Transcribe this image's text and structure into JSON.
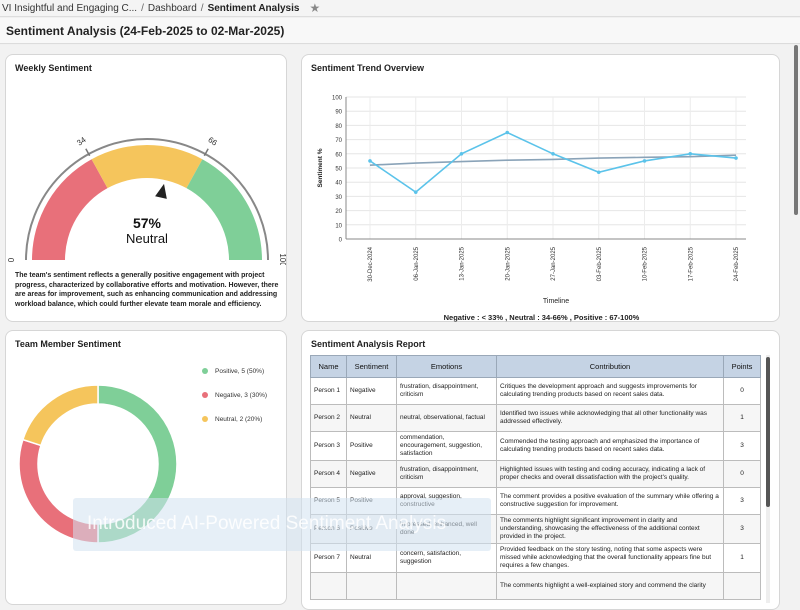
{
  "breadcrumb": {
    "project": "VI Insightful and Engaging C...",
    "dashboard": "Dashboard",
    "current": "Sentiment Analysis",
    "separator": "/"
  },
  "page": {
    "title": "Sentiment Analysis (24-Feb-2025 to 02-Mar-2025)"
  },
  "weekly": {
    "title": "Weekly Sentiment",
    "ticks": {
      "min": "0",
      "low": "34",
      "high": "66",
      "max": "100"
    },
    "percent": "57%",
    "label": "Neutral",
    "value": 57,
    "description": "The team's sentiment reflects a generally positive engagement with project progress, characterized by collaborative efforts and motivation. However, there are areas for improvement, such as enhancing communication and addressing workload balance, which could further elevate team morale and efficiency.",
    "colors": {
      "negative": "#e8707a",
      "neutral": "#f5c55c",
      "positive": "#7fcf98"
    }
  },
  "trend": {
    "title": "Sentiment Trend Overview",
    "legend": "Negative : < 33% , Neutral : 34-66% , Positive : 67-100%",
    "chart_data": {
      "type": "line",
      "xlabel": "Timeline",
      "ylabel": "Sentiment %",
      "ylim": [
        0,
        100
      ],
      "yticks": [
        "0",
        "10",
        "20",
        "30",
        "40",
        "50",
        "60",
        "70",
        "80",
        "90",
        "100"
      ],
      "categories": [
        "30-Dec-2024",
        "06-Jan-2025",
        "13-Jan-2025",
        "20-Jan-2025",
        "27-Jan-2025",
        "03-Feb-2025",
        "10-Feb-2025",
        "17-Feb-2025",
        "24-Feb-2025"
      ],
      "series": [
        {
          "values": [
            55,
            33,
            60,
            75,
            60,
            47,
            55,
            60,
            57
          ],
          "color": "#5bc3ea"
        },
        {
          "values": [
            52,
            53.5,
            54.5,
            55.5,
            56,
            57,
            57.5,
            58,
            59
          ],
          "color": "#8aa3b8"
        }
      ],
      "grid": true
    }
  },
  "team": {
    "title": "Team Member Sentiment",
    "chart_data": {
      "type": "pie",
      "labels": [
        "Positive, 5 (50%)",
        "Negative, 3 (30%)",
        "Neutral, 2 (20%)"
      ],
      "values": [
        50,
        30,
        20
      ],
      "colors": [
        "#7fcf98",
        "#e8707a",
        "#f5c55c"
      ]
    }
  },
  "report": {
    "title": "Sentiment Analysis Report",
    "columns": [
      "Name",
      "Sentiment",
      "Emotions",
      "Contribution",
      "Points"
    ],
    "rows": [
      {
        "name": "Person 1",
        "sentiment": "Negative",
        "emotions": "frustration, disappointment, criticism",
        "contribution": "Critiques the development approach and suggests improvements for calculating trending products based on recent sales data.",
        "points": "0"
      },
      {
        "name": "Person 2",
        "sentiment": "Neutral",
        "emotions": "neutral, observational, factual",
        "contribution": "Identified two issues while acknowledging that all other functionality was addressed effectively.",
        "points": "1"
      },
      {
        "name": "Person 3",
        "sentiment": "Positive",
        "emotions": "commendation, encouragement, suggestion, satisfaction",
        "contribution": "Commended the testing approach and emphasized the importance of calculating trending products based on recent sales data.",
        "points": "3"
      },
      {
        "name": "Person 4",
        "sentiment": "Negative",
        "emotions": "frustration, disappointment, criticism",
        "contribution": "Highlighted issues with testing and coding accuracy, indicating a lack of proper checks and overall dissatisfaction with the project's quality.",
        "points": "0"
      },
      {
        "name": "Person 5",
        "sentiment": "Positive",
        "emotions": "approval, suggestion, constructive",
        "contribution": "The comment provides a positive evaluation of the summary while offering a constructive suggestion for improvement.",
        "points": "3"
      },
      {
        "name": "Person 6",
        "sentiment": "Positive",
        "emotions": "impressed, enhanced, well done",
        "contribution": "The comments highlight significant improvement in clarity and understanding, showcasing the effectiveness of the additional context provided in the project.",
        "points": "3"
      },
      {
        "name": "Person 7",
        "sentiment": "Neutral",
        "emotions": "concern, satisfaction, suggestion",
        "contribution": "Provided feedback on the story testing, noting that some aspects were missed while acknowledging that the overall functionality appears fine but requires a few changes.",
        "points": "1"
      },
      {
        "name": "",
        "sentiment": "",
        "emotions": "",
        "contribution": "The comments highlight a well-explained story and commend the clarity",
        "points": ""
      }
    ]
  },
  "watermark": {
    "text": "Introduced AI-Powered Sentiment Analysis"
  }
}
